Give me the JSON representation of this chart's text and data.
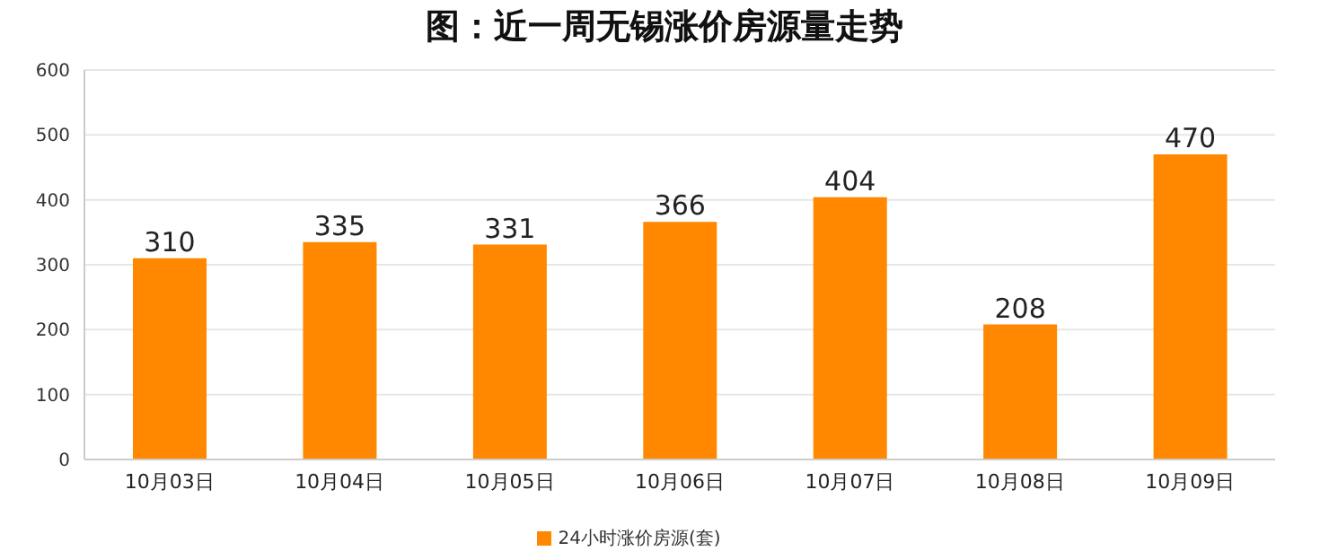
{
  "chart_data": {
    "type": "bar",
    "title": "图：近一周无锡涨价房源量走势",
    "categories": [
      "10月03日",
      "10月04日",
      "10月05日",
      "10月06日",
      "10月07日",
      "10月08日",
      "10月09日"
    ],
    "series": [
      {
        "name": "24小时涨价房源(套)",
        "color": "#ff8800",
        "values": [
          310,
          335,
          331,
          366,
          404,
          208,
          470
        ]
      }
    ],
    "ylim": [
      0,
      600
    ],
    "yticks": [
      0,
      100,
      200,
      300,
      400,
      500,
      600
    ],
    "grid": "y",
    "legend": "bottom",
    "data_labels": true
  }
}
